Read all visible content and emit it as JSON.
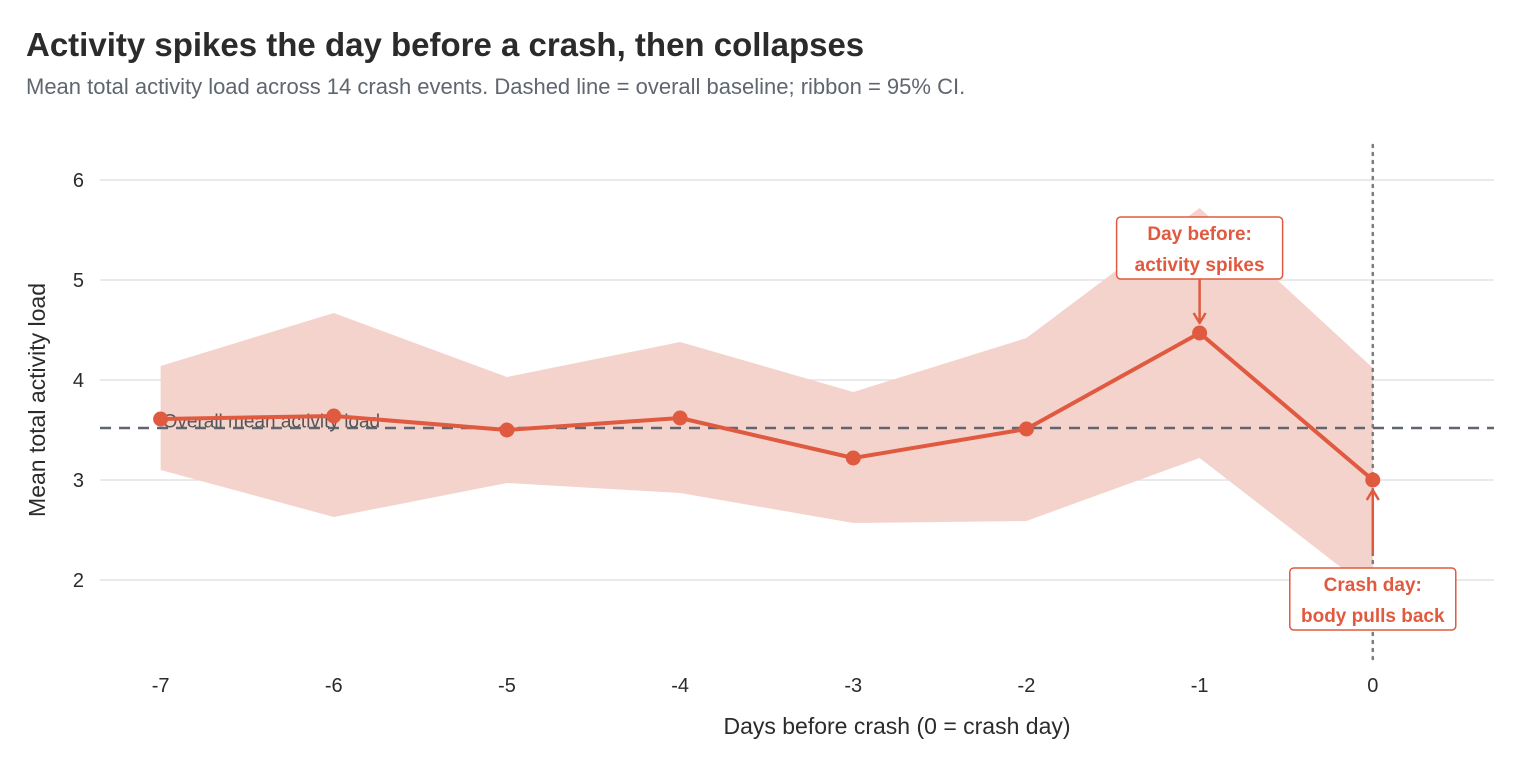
{
  "chart_data": {
    "type": "line",
    "title": "Activity spikes the day before a crash, then collapses",
    "subtitle": "Mean total activity load across 14 crash events. Dashed line = overall baseline; ribbon = 95% CI.",
    "xlabel": "Days before crash (0 = crash day)",
    "ylabel": "Mean total activity load",
    "x": [
      -7,
      -6,
      -5,
      -4,
      -3,
      -2,
      -1,
      0
    ],
    "series": [
      {
        "values": [
          3.61,
          3.64,
          3.5,
          3.62,
          3.22,
          3.51,
          4.47,
          3.0
        ],
        "ci_lower": [
          3.1,
          2.63,
          2.97,
          2.87,
          2.57,
          2.59,
          3.22,
          1.88
        ],
        "ci_upper": [
          4.14,
          4.67,
          4.03,
          4.38,
          3.88,
          4.42,
          5.72,
          4.12
        ]
      }
    ],
    "baseline": {
      "value": 3.52,
      "label": "Overall mean activity load"
    },
    "xticks": [
      "-7",
      "-6",
      "-5",
      "-4",
      "-3",
      "-2",
      "-1",
      "0"
    ],
    "yticks": [
      "2",
      "3",
      "4",
      "5",
      "6"
    ],
    "ylim": [
      1.2,
      6.4
    ],
    "xlim": [
      -7.35,
      0.7
    ],
    "vline_x": 0,
    "grid": "horizontal",
    "annotations": [
      {
        "x": -1,
        "y": 4.47,
        "line1": "Day before:",
        "line2": "activity spikes",
        "position": "above"
      },
      {
        "x": 0,
        "y": 3.0,
        "line1": "Crash day:",
        "line2": "body pulls back",
        "position": "below"
      }
    ],
    "colors": {
      "line": "#e05a40",
      "ribbon": "#f5d3cd",
      "baseline": "#5f6670",
      "vline": "#7a7a7a",
      "grid": "#e4e4e4"
    }
  }
}
